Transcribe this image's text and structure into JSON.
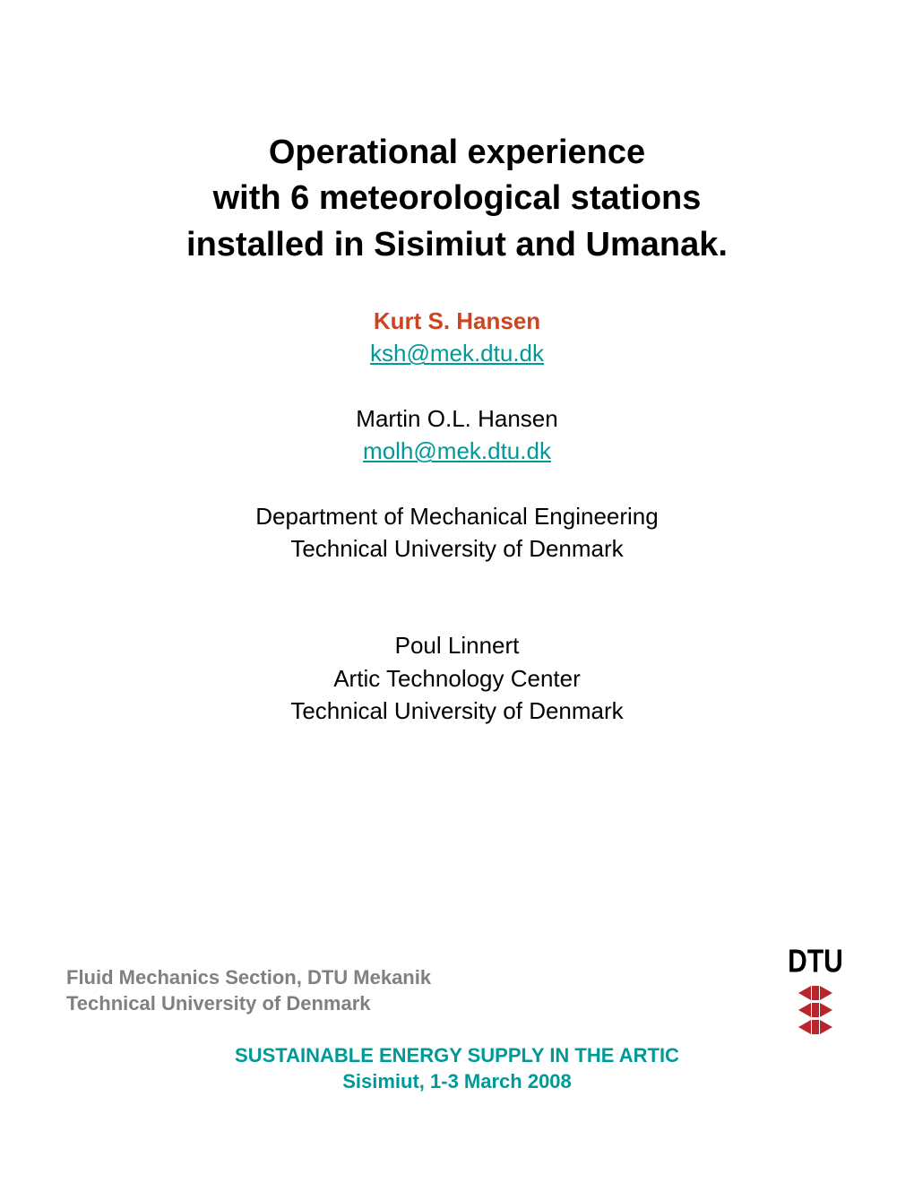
{
  "title": {
    "line1": "Operational experience",
    "line2": "with 6 meteorological stations",
    "line3": "installed in Sisimiut and Umanak."
  },
  "authors": {
    "primary": {
      "name": "Kurt S. Hansen",
      "email": "ksh@mek.dtu.dk"
    },
    "second": {
      "name": "Martin O.L. Hansen",
      "email": "molh@mek.dtu.dk"
    },
    "dept1_line1": "Department of Mechanical Engineering",
    "dept1_line2": "Technical University of Denmark",
    "third": {
      "name": "Poul Linnert"
    },
    "dept2_line1": "Artic Technology Center",
    "dept2_line2": "Technical University of Denmark"
  },
  "footer": {
    "left_line1": "Fluid Mechanics Section, DTU Mekanik",
    "left_line2": "Technical University of Denmark",
    "center_line1": "SUSTAINABLE ENERGY SUPPLY IN THE ARTIC",
    "center_line2": "Sisimiut, 1-3 March 2008"
  },
  "logo": {
    "text": "DTU"
  },
  "colors": {
    "text_black": "#000000",
    "text_gray": "#808080",
    "link_teal": "#009999",
    "author_primary": "#cc4422",
    "logo_red": "#b8262b",
    "background": "#ffffff"
  },
  "typography": {
    "title_fontsize": 38,
    "body_fontsize": 26,
    "footer_fontsize": 22,
    "logo_fontsize": 30,
    "font_family": "Arial Narrow"
  }
}
